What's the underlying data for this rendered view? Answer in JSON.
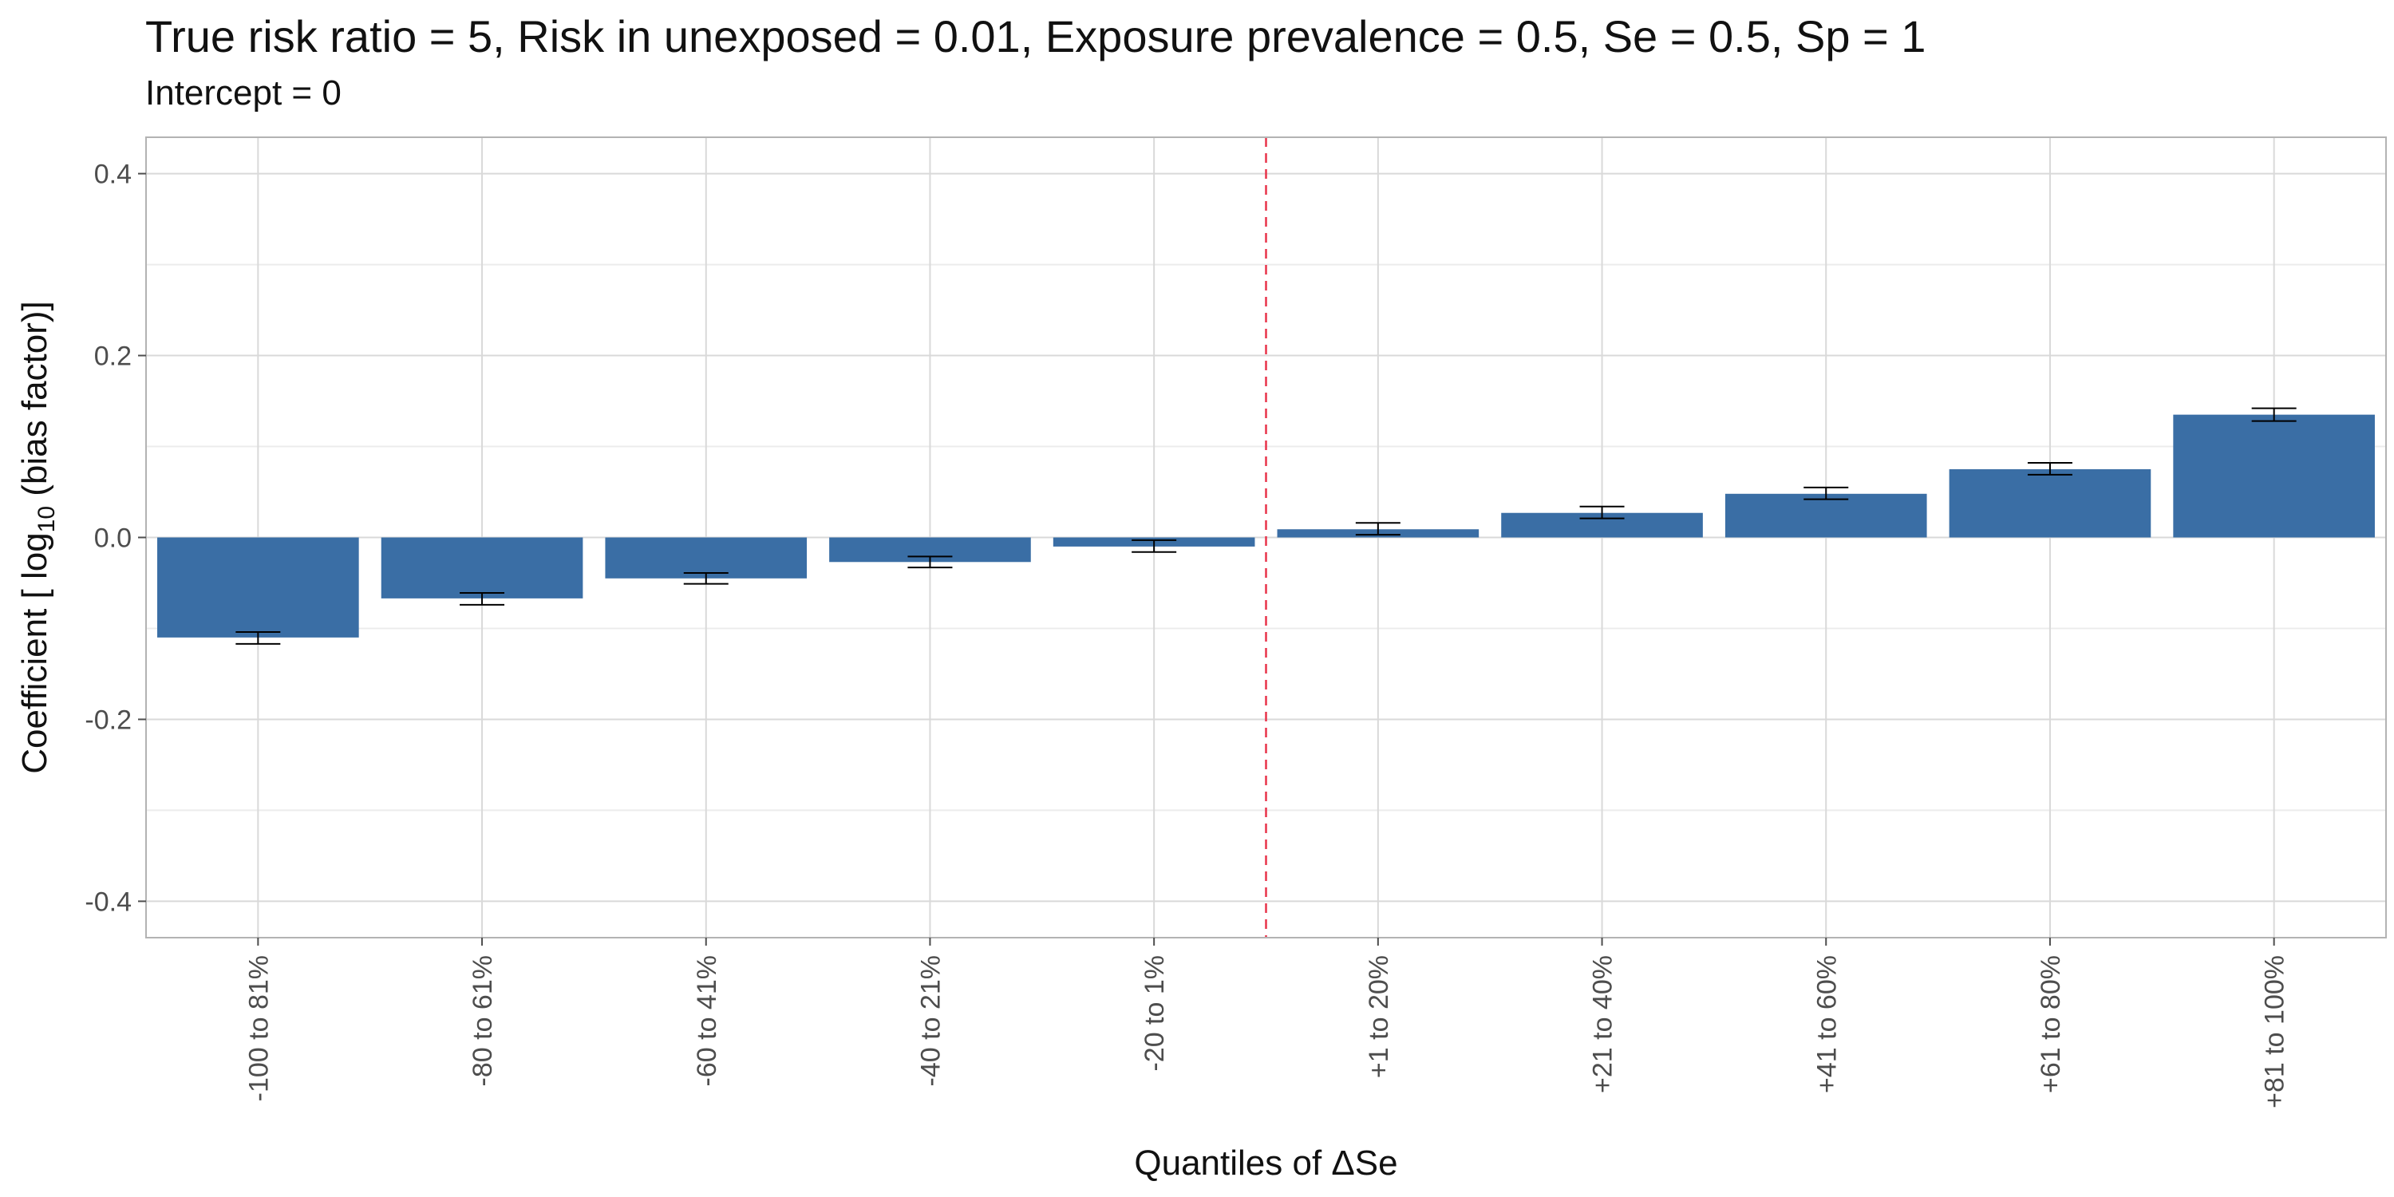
{
  "chart_data": {
    "type": "bar",
    "title": "True risk ratio = 5, Risk in unexposed = 0.01, Exposure prevalence = 0.5, Se = 0.5, Sp = 1",
    "subtitle": "Intercept = 0",
    "xlabel": "Quantiles of ΔSe",
    "ylabel": {
      "prefix": "Coefficient [ log",
      "subscript": "10",
      "suffix": " (bias factor)]"
    },
    "categories": [
      "-100 to 81%",
      "-80 to 61%",
      "-60 to 41%",
      "-40 to 21%",
      "-20 to 1%",
      "+1 to 20%",
      "+21 to 40%",
      "+41 to 60%",
      "+61 to 80%",
      "+81 to 100%"
    ],
    "values": [
      -0.11,
      -0.067,
      -0.045,
      -0.027,
      -0.01,
      0.009,
      0.027,
      0.048,
      0.075,
      0.135
    ],
    "error_low": [
      -0.117,
      -0.074,
      -0.051,
      -0.033,
      -0.016,
      0.003,
      0.021,
      0.042,
      0.069,
      0.128
    ],
    "error_high": [
      -0.104,
      -0.061,
      -0.039,
      -0.021,
      -0.003,
      0.016,
      0.034,
      0.055,
      0.082,
      0.142
    ],
    "ylim": [
      -0.44,
      0.44
    ],
    "yticks": [
      -0.4,
      -0.2,
      0.0,
      0.2,
      0.4
    ],
    "ytick_labels": [
      "-0.4",
      "-0.2",
      "0.0",
      "0.2",
      "0.4"
    ],
    "reference_line_between": [
      "-20 to 1%",
      "+1 to 20%"
    ],
    "grid": true,
    "legend": "none",
    "colors": {
      "bar": "#3a6ea5",
      "error_bar": "#000000",
      "reference_line": "#e8334a",
      "grid_major": "#d9d9d9",
      "grid_minor": "#ececec",
      "panel_border": "#b3b3b3"
    }
  }
}
